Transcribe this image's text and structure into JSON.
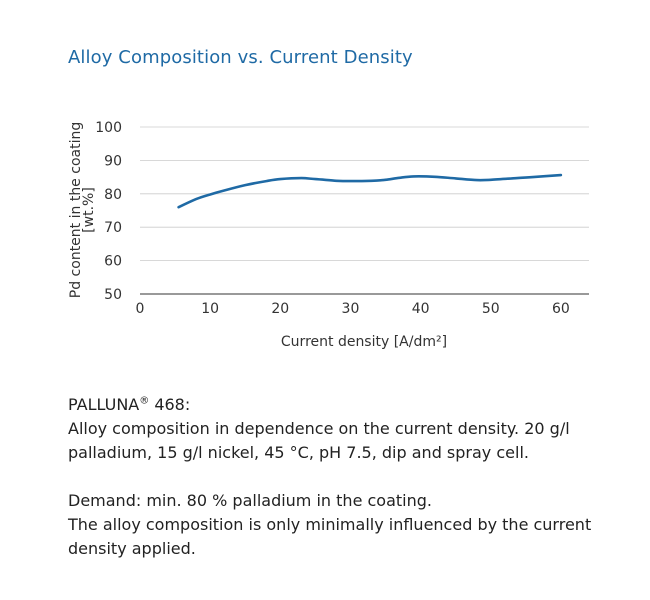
{
  "title": "Alloy Composition vs. Current Density",
  "colors": {
    "title": "#1f6aa5",
    "line": "#1f6aa5",
    "grid": "#cccccc",
    "axis": "#333333"
  },
  "chart_data": {
    "type": "line",
    "title": "Alloy Composition vs. Current Density",
    "xlabel": "Current density [A/dm²]",
    "ylabel_line1": "Pd content in the coating",
    "ylabel_line2": "[wt.%]",
    "xlim": [
      0,
      64
    ],
    "ylim": [
      50,
      100
    ],
    "x_ticks": [
      0,
      10,
      20,
      30,
      40,
      50,
      60
    ],
    "y_ticks": [
      100,
      90,
      80,
      70,
      60,
      50
    ],
    "grid": true,
    "legend": "none",
    "series": [
      {
        "x": [
          5.5,
          8,
          10,
          12,
          15,
          18,
          20,
          23,
          25,
          28,
          30,
          33,
          35,
          37,
          39,
          42,
          45,
          48,
          50,
          53,
          56,
          60
        ],
        "values": [
          76,
          78.4,
          79.8,
          81,
          82.6,
          83.8,
          84.4,
          84.7,
          84.4,
          83.9,
          83.8,
          83.9,
          84.2,
          84.8,
          85.2,
          85.1,
          84.6,
          84.1,
          84.2,
          84.6,
          85,
          85.6
        ]
      }
    ]
  },
  "description": {
    "product_name": "PALLUNA",
    "reg_mark": "®",
    "product_number": " 468:",
    "line1": "Alloy composition in dependence on the current density. 20 g/l palladium, 15 g/l nickel, 45 °C, pH 7.5, dip and spray cell.",
    "demand": "Demand: min. 80 % palladium in the coating.",
    "conclusion": "The alloy composition is only minimally influenced by the current density applied."
  }
}
